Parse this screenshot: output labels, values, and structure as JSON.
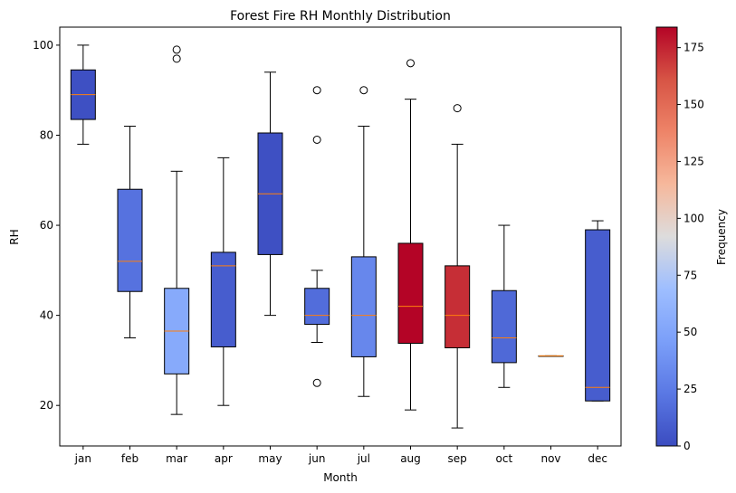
{
  "chart_data": {
    "type": "box",
    "title": "Forest Fire RH Monthly Distribution",
    "xlabel": "Month",
    "ylabel": "RH",
    "ylim": [
      11,
      104
    ],
    "yticks": [
      20,
      40,
      60,
      80,
      100
    ],
    "categories": [
      "jan",
      "feb",
      "mar",
      "apr",
      "may",
      "jun",
      "jul",
      "aug",
      "sep",
      "oct",
      "nov",
      "dec"
    ],
    "boxes": [
      {
        "month": "jan",
        "whislo": 78,
        "q1": 83.5,
        "med": 89,
        "q3": 94.5,
        "whishi": 100,
        "fliers": [],
        "frequency": 2
      },
      {
        "month": "feb",
        "whislo": 35,
        "q1": 45.3,
        "med": 52,
        "q3": 68,
        "whishi": 82,
        "fliers": [],
        "frequency": 20
      },
      {
        "month": "mar",
        "whislo": 18,
        "q1": 27,
        "med": 36.5,
        "q3": 46,
        "whishi": 72,
        "fliers": [
          97,
          99
        ],
        "frequency": 54
      },
      {
        "month": "apr",
        "whislo": 20,
        "q1": 33,
        "med": 51,
        "q3": 54,
        "whishi": 75,
        "fliers": [],
        "frequency": 9
      },
      {
        "month": "may",
        "whislo": 40,
        "q1": 53.5,
        "med": 67,
        "q3": 80.5,
        "whishi": 94,
        "fliers": [],
        "frequency": 2
      },
      {
        "month": "jun",
        "whislo": 34,
        "q1": 38,
        "med": 40,
        "q3": 46,
        "whishi": 50,
        "fliers": [
          25,
          79,
          90
        ],
        "frequency": 17
      },
      {
        "month": "jul",
        "whislo": 22,
        "q1": 30.8,
        "med": 40,
        "q3": 53,
        "whishi": 82,
        "fliers": [
          90
        ],
        "frequency": 32
      },
      {
        "month": "aug",
        "whislo": 19,
        "q1": 33.8,
        "med": 42,
        "q3": 56,
        "whishi": 88,
        "fliers": [
          96
        ],
        "frequency": 184
      },
      {
        "month": "sep",
        "whislo": 15,
        "q1": 32.8,
        "med": 40,
        "q3": 51,
        "whishi": 78,
        "fliers": [
          86
        ],
        "frequency": 172
      },
      {
        "month": "oct",
        "whislo": 24,
        "q1": 29.5,
        "med": 35,
        "q3": 45.5,
        "whishi": 60,
        "fliers": [],
        "frequency": 15
      },
      {
        "month": "nov",
        "whislo": 31,
        "q1": 31,
        "med": 31,
        "q3": 31,
        "whishi": 31,
        "fliers": [],
        "frequency": 1
      },
      {
        "month": "dec",
        "whislo": 21,
        "q1": 21,
        "med": 24,
        "q3": 59,
        "whishi": 61,
        "fliers": [],
        "frequency": 9
      }
    ],
    "colorbar": {
      "label": "Frequency",
      "colormap": "coolwarm",
      "range": [
        0,
        184
      ],
      "ticks": [
        0,
        25,
        50,
        75,
        100,
        125,
        150,
        175
      ]
    },
    "colors": {
      "median": "#ff7f0e",
      "outline": "#000000"
    }
  }
}
